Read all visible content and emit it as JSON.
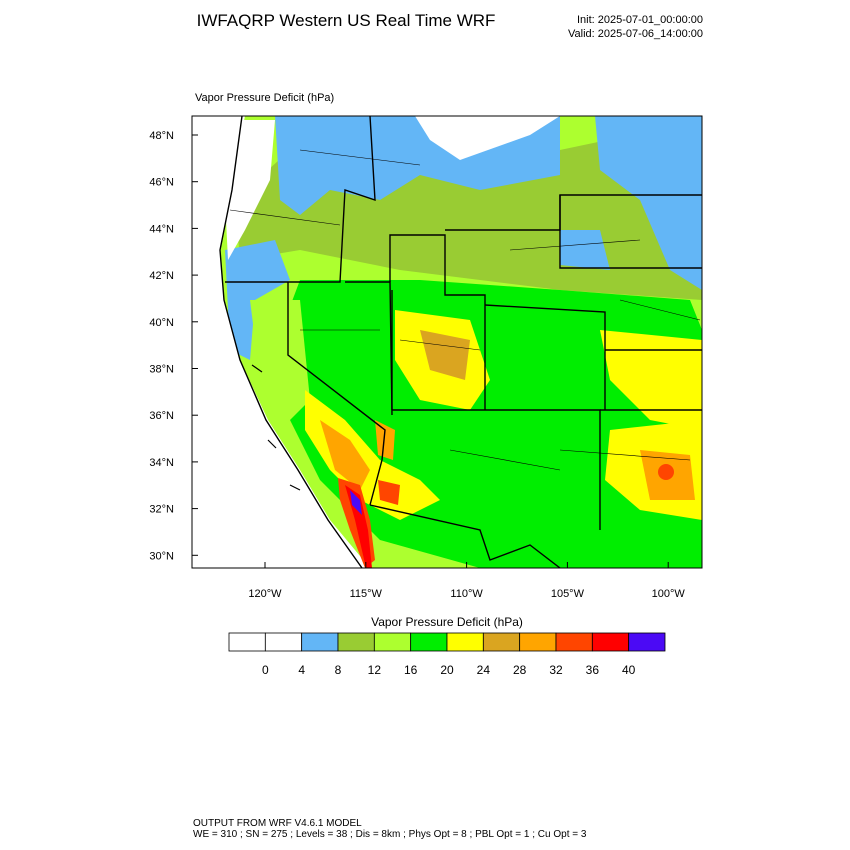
{
  "header": {
    "title": "IWFAQRP Western US Real Time WRF",
    "init": "Init: 2025-07-01_00:00:00",
    "valid": "Valid: 2025-07-06_14:00:00"
  },
  "plot": {
    "label": "Vapor Pressure Deficit   (hPa)"
  },
  "map": {
    "lat_labels": [
      "48°N",
      "46°N",
      "44°N",
      "42°N",
      "40°N",
      "38°N",
      "36°N",
      "34°N",
      "32°N",
      "30°N"
    ],
    "lon_labels": [
      "120°W",
      "115°W",
      "110°W",
      "105°W",
      "100°W"
    ]
  },
  "colorbar": {
    "title": "Vapor Pressure Deficit  (hPa)",
    "levels": [
      0,
      4,
      8,
      12,
      16,
      20,
      24,
      28,
      32,
      36,
      40
    ],
    "colors": [
      "#ffffff",
      "#ffffff",
      "#63b6f6",
      "#99cc33",
      "#adff2f",
      "#00ee00",
      "#ffff00",
      "#daa520",
      "#ffa500",
      "#ff4500",
      "#ff0000",
      "#4b0af5"
    ]
  },
  "footer": {
    "line1": "OUTPUT FROM WRF V4.6.1 MODEL",
    "line2": "WE = 310 ; SN = 275 ; Levels = 38 ; Dis = 8km ; Phys Opt = 8 ; PBL Opt = 1 ; Cu Opt = 3"
  }
}
